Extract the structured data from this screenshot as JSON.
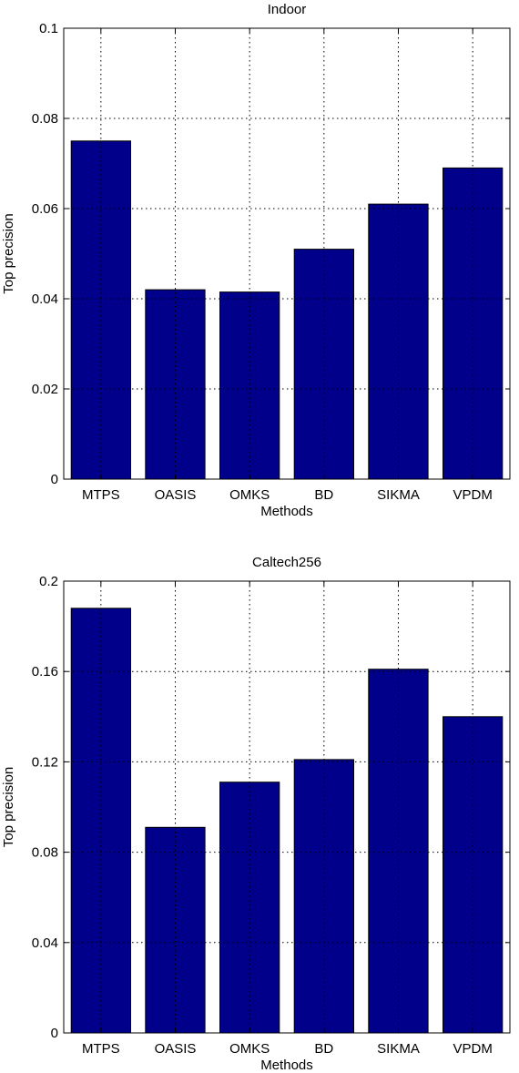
{
  "chart_data": [
    {
      "type": "bar",
      "title": "Indoor",
      "xlabel": "Methods",
      "ylabel": "Top precision",
      "categories": [
        "MTPS",
        "OASIS",
        "OMKS",
        "BD",
        "SIKMA",
        "VPDM"
      ],
      "values": [
        0.075,
        0.042,
        0.0415,
        0.051,
        0.061,
        0.069
      ],
      "ylim": [
        0,
        0.1
      ],
      "yticks": [
        0,
        0.02,
        0.04,
        0.06,
        0.08,
        0.1
      ],
      "ytick_labels": [
        "0",
        "0.02",
        "0.04",
        "0.06",
        "0.08",
        "0.1"
      ],
      "grid": true,
      "color": "#00008b"
    },
    {
      "type": "bar",
      "title": "Caltech256",
      "xlabel": "Methods",
      "ylabel": "Top precision",
      "categories": [
        "MTPS",
        "OASIS",
        "OMKS",
        "BD",
        "SIKMA",
        "VPDM"
      ],
      "values": [
        0.188,
        0.091,
        0.111,
        0.121,
        0.161,
        0.14
      ],
      "ylim": [
        0,
        0.2
      ],
      "yticks": [
        0,
        0.04,
        0.08,
        0.12,
        0.16,
        0.2
      ],
      "ytick_labels": [
        "0",
        "0.04",
        "0.08",
        "0.12",
        "0.16",
        "0.2"
      ],
      "grid": true,
      "color": "#00008b"
    }
  ]
}
